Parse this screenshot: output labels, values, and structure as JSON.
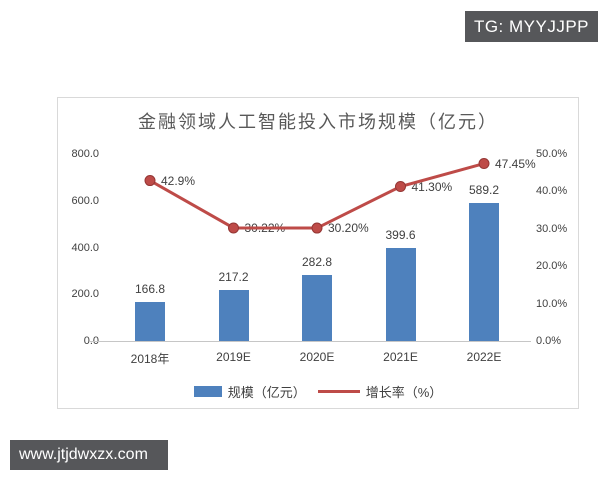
{
  "overlay": {
    "tg_badge": "TG: MYYJJPP",
    "site_badge": "www.jtjdwxzx.com",
    "badge_bg": "#56575a"
  },
  "chart_data": {
    "type": "bar",
    "combo": "bar+line",
    "title": "金融领域人工智能投入市场规模（亿元）",
    "categories": [
      "2018年",
      "2019E",
      "2020E",
      "2021E",
      "2022E"
    ],
    "series": [
      {
        "name": "规模（亿元）",
        "type": "bar",
        "axis": "left",
        "color": "#4e81bd",
        "values": [
          166.8,
          217.2,
          282.8,
          399.6,
          589.2
        ],
        "labels": [
          "166.8",
          "217.2",
          "282.8",
          "399.6",
          "589.2"
        ]
      },
      {
        "name": "增长率（%）",
        "type": "line",
        "axis": "right",
        "color": "#be4b48",
        "marker_edge_color": "#943634",
        "values": [
          42.9,
          30.22,
          30.2,
          41.3,
          47.45
        ],
        "labels": [
          "42.9%",
          "30.22%",
          "30.20%",
          "41.30%",
          "47.45%"
        ]
      }
    ],
    "left_axis": {
      "min": 0,
      "max": 800,
      "ticks": [
        "800.0",
        "600.0",
        "400.0",
        "200.0",
        "0.0"
      ]
    },
    "right_axis": {
      "min": 0,
      "max": 50,
      "ticks": [
        "50.0%",
        "40.0%",
        "30.0%",
        "20.0%",
        "10.0%",
        "0.0%"
      ]
    },
    "legend_position": "bottom",
    "grid": "off"
  }
}
